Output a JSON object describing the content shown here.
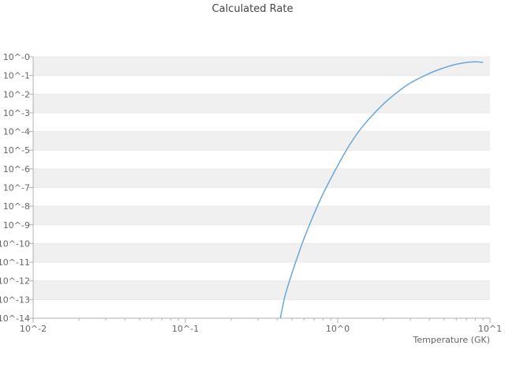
{
  "chart_data": {
    "type": "line",
    "title": "Calculated Rate",
    "xlabel": "Temperature (GK)",
    "ylabel": "",
    "xscale": "log",
    "yscale": "log",
    "xlim": [
      0.01,
      10
    ],
    "ylim": [
      1e-14,
      1
    ],
    "grid": "horizontal-bands",
    "legend": "none",
    "x_tick_labels": [
      "10^-2",
      "10^-1",
      "10^0",
      "10^1"
    ],
    "x_tick_values": [
      0.01,
      0.1,
      1,
      10
    ],
    "y_tick_labels": [
      "10^-0",
      "10^-1",
      "10^-2",
      "10^-3",
      "10^-4",
      "10^-5",
      "10^-6",
      "10^-7",
      "10^-8",
      "10^-9",
      "10^-10",
      "10^-11",
      "10^-12",
      "10^-13",
      "10^-14"
    ],
    "y_tick_values": [
      1,
      0.1,
      0.01,
      0.001,
      0.0001,
      1e-05,
      1e-06,
      1e-07,
      1e-08,
      1e-09,
      1e-10,
      1e-11,
      1e-12,
      1e-13,
      1e-14
    ],
    "series": [
      {
        "name": "calculated-rate",
        "x": [
          0.42,
          0.45,
          0.5,
          0.55,
          0.6,
          0.7,
          0.8,
          0.9,
          1.0,
          1.2,
          1.5,
          2.0,
          2.5,
          3.0,
          4.0,
          5.0,
          6.0,
          7.0,
          8.0,
          9.0
        ],
        "y": [
          1e-14,
          1.5e-13,
          2.5e-12,
          2.5e-11,
          1.8e-10,
          4e-09,
          4.5e-08,
          3e-07,
          1.5e-06,
          2e-05,
          0.00025,
          0.003,
          0.014,
          0.04,
          0.13,
          0.26,
          0.4,
          0.5,
          0.54,
          0.5
        ]
      }
    ],
    "colors": {
      "line": "#6aa7d8",
      "band": "#f0f0f0",
      "gridline": "#eaeaea",
      "axis": "#b0b0b0",
      "tick_text": "#666666",
      "title_text": "#454545"
    }
  }
}
